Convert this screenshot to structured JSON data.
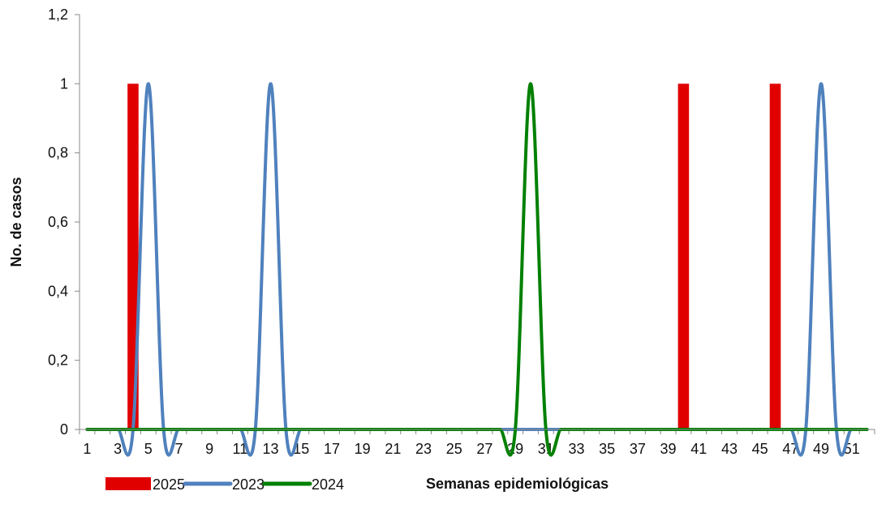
{
  "chart_data": {
    "type": "bar",
    "xlabel": "Semanas epidemiológicas",
    "ylabel": "No. de casos",
    "ylim": [
      0,
      1.2
    ],
    "yticks": [
      "0",
      "0,2",
      "0,4",
      "0,6",
      "0,8",
      "1",
      "1,2"
    ],
    "xtick_labels": [
      "1",
      "3",
      "5",
      "7",
      "9",
      "11",
      "13",
      "15",
      "17",
      "19",
      "21",
      "23",
      "25",
      "27",
      "29",
      "31",
      "33",
      "35",
      "37",
      "39",
      "41",
      "43",
      "45",
      "47",
      "49",
      "51"
    ],
    "weeks": [
      1,
      2,
      3,
      4,
      5,
      6,
      7,
      8,
      9,
      10,
      11,
      12,
      13,
      14,
      15,
      16,
      17,
      18,
      19,
      20,
      21,
      22,
      23,
      24,
      25,
      26,
      27,
      28,
      29,
      30,
      31,
      32,
      33,
      34,
      35,
      36,
      37,
      38,
      39,
      40,
      41,
      42,
      43,
      44,
      45,
      46,
      47,
      48,
      49,
      50,
      51,
      52
    ],
    "grid": false,
    "legend_position": "bottom-left",
    "series": [
      {
        "name": "2025",
        "type": "bar",
        "color": "#e00000",
        "values": [
          0,
          0,
          0,
          1,
          0,
          0,
          0,
          0,
          0,
          0,
          0,
          0,
          0,
          0,
          0,
          0,
          0,
          0,
          0,
          0,
          0,
          0,
          0,
          0,
          0,
          0,
          0,
          0,
          0,
          0,
          0,
          0,
          0,
          0,
          0,
          0,
          0,
          0,
          0,
          1,
          0,
          0,
          0,
          0,
          0,
          1,
          0,
          0,
          0,
          0,
          0,
          0
        ]
      },
      {
        "name": "2023",
        "type": "line",
        "color": "#4f81bd",
        "values": [
          0,
          0,
          0,
          0,
          1,
          0,
          0,
          0,
          0,
          0,
          0,
          0,
          1,
          0,
          0,
          0,
          0,
          0,
          0,
          0,
          0,
          0,
          0,
          0,
          0,
          0,
          0,
          0,
          0,
          0,
          0,
          0,
          0,
          0,
          0,
          0,
          0,
          0,
          0,
          0,
          0,
          0,
          0,
          0,
          0,
          0,
          0,
          0,
          1,
          0,
          0,
          0
        ]
      },
      {
        "name": "2024",
        "type": "line",
        "color": "#008000",
        "values": [
          0,
          0,
          0,
          0,
          0,
          0,
          0,
          0,
          0,
          0,
          0,
          0,
          0,
          0,
          0,
          0,
          0,
          0,
          0,
          0,
          0,
          0,
          0,
          0,
          0,
          0,
          0,
          0,
          0,
          1,
          0,
          0,
          0,
          0,
          0,
          0,
          0,
          0,
          0,
          0,
          0,
          0,
          0,
          0,
          0,
          0,
          0,
          0,
          0,
          0,
          0,
          0
        ]
      }
    ]
  }
}
